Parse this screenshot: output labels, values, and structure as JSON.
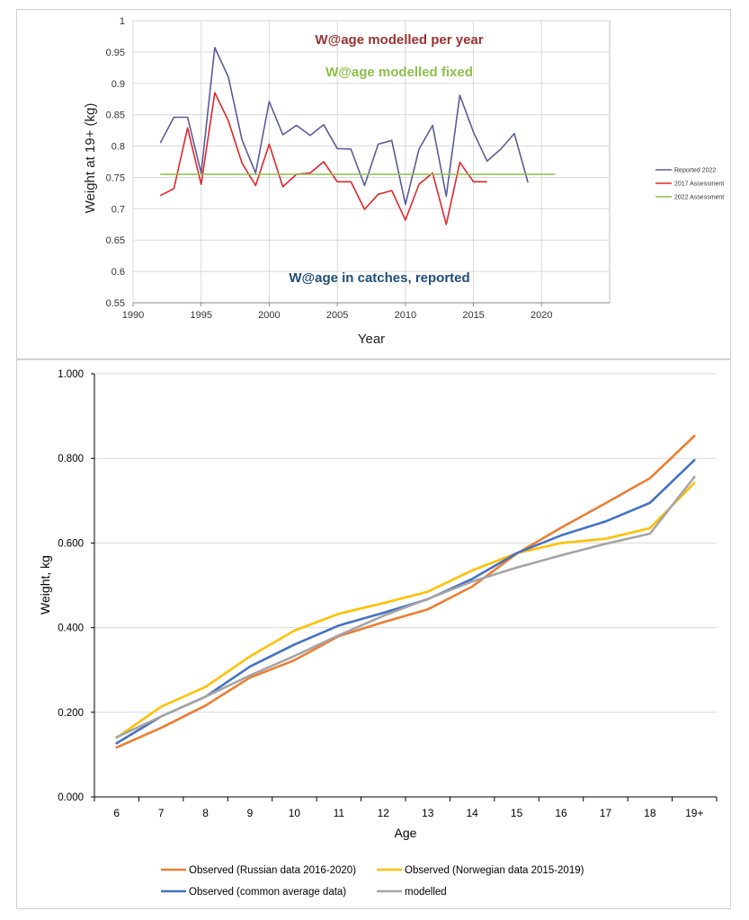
{
  "chart_data": [
    {
      "type": "line",
      "xlabel": "Year",
      "ylabel": "Weight at 19+ (kg)",
      "xlim": [
        1990,
        2025
      ],
      "ylim": [
        0.55,
        1
      ],
      "xticks": [
        1990,
        1995,
        2000,
        2005,
        2010,
        2015,
        2020
      ],
      "yticks": [
        0.55,
        0.6,
        0.65,
        0.7,
        0.75,
        0.8,
        0.85,
        0.9,
        0.95,
        1
      ],
      "ytick_labels": [
        "0.55",
        "0.6",
        "0.65",
        "0.7",
        "0.75",
        "0.8",
        "0.85",
        "0.9",
        "0.95",
        "1"
      ],
      "grid": true,
      "legend_position": "right",
      "annotations": {
        "per_year": "W@age modelled per year",
        "fixed": "W@age modelled fixed",
        "reported": "W@age in catches, reported"
      },
      "series": [
        {
          "name": "Reported 2022",
          "color": "#5b5b9b",
          "x": [
            1992,
            1993,
            1994,
            1995,
            1996,
            1997,
            1998,
            1999,
            2000,
            2001,
            2002,
            2003,
            2004,
            2005,
            2006,
            2007,
            2008,
            2009,
            2010,
            2011,
            2012,
            2013,
            2014,
            2015,
            2016,
            2017,
            2018,
            2019
          ],
          "y": [
            0.805,
            0.846,
            0.846,
            0.757,
            0.957,
            0.91,
            0.81,
            0.757,
            0.871,
            0.818,
            0.833,
            0.817,
            0.834,
            0.796,
            0.795,
            0.737,
            0.803,
            0.809,
            0.707,
            0.795,
            0.833,
            0.72,
            0.881,
            0.822,
            0.776,
            0.795,
            0.82,
            0.742
          ]
        },
        {
          "name": "2017 Assessment",
          "color": "#e0262b",
          "x": [
            1992,
            1993,
            1994,
            1995,
            1996,
            1997,
            1998,
            1999,
            2000,
            2001,
            2002,
            2003,
            2004,
            2005,
            2006,
            2007,
            2008,
            2009,
            2010,
            2011,
            2012,
            2013,
            2014,
            2015,
            2016
          ],
          "y": [
            0.721,
            0.732,
            0.829,
            0.739,
            0.885,
            0.84,
            0.773,
            0.737,
            0.803,
            0.735,
            0.755,
            0.757,
            0.775,
            0.743,
            0.743,
            0.699,
            0.723,
            0.729,
            0.682,
            0.739,
            0.757,
            0.675,
            0.774,
            0.743,
            0.743
          ]
        },
        {
          "name": "2022 Assessment",
          "color": "#8cbf4a",
          "x": [
            1992,
            2021
          ],
          "y": [
            0.755,
            0.755
          ]
        }
      ]
    },
    {
      "type": "line",
      "xlabel": "Age",
      "ylabel": "Weight, kg",
      "categories": [
        "6",
        "7",
        "8",
        "9",
        "10",
        "11",
        "12",
        "13",
        "14",
        "15",
        "16",
        "17",
        "18",
        "19+"
      ],
      "ylim": [
        0,
        1
      ],
      "yticks": [
        0,
        0.2,
        0.4,
        0.6,
        0.8,
        1
      ],
      "ytick_labels": [
        "0.000",
        "0.200",
        "0.400",
        "0.600",
        "0.800",
        "1.000"
      ],
      "grid": true,
      "legend_position": "bottom",
      "series": [
        {
          "name": "Observed (Russian data 2016-2020)",
          "color": "#ed7d31",
          "values": [
            0.117,
            0.163,
            0.216,
            0.282,
            0.323,
            0.38,
            0.413,
            0.443,
            0.497,
            0.575,
            0.636,
            0.694,
            0.753,
            0.853
          ]
        },
        {
          "name": "Observed (Norwegian data 2015-2019)",
          "color": "#ffc000",
          "values": [
            0.14,
            0.213,
            0.26,
            0.332,
            0.393,
            0.433,
            0.458,
            0.485,
            0.535,
            0.576,
            0.6,
            0.61,
            0.635,
            0.742
          ]
        },
        {
          "name": "Observed (common average data)",
          "color": "#4472c4",
          "values": [
            0.127,
            0.19,
            0.237,
            0.308,
            0.36,
            0.405,
            0.435,
            0.467,
            0.515,
            0.576,
            0.618,
            0.651,
            0.695,
            0.796
          ]
        },
        {
          "name": "modelled",
          "color": "#a5a5a5",
          "values": [
            0.141,
            0.19,
            0.237,
            0.287,
            0.333,
            0.382,
            0.428,
            0.468,
            0.509,
            0.542,
            0.571,
            0.598,
            0.622,
            0.756
          ]
        }
      ]
    }
  ]
}
